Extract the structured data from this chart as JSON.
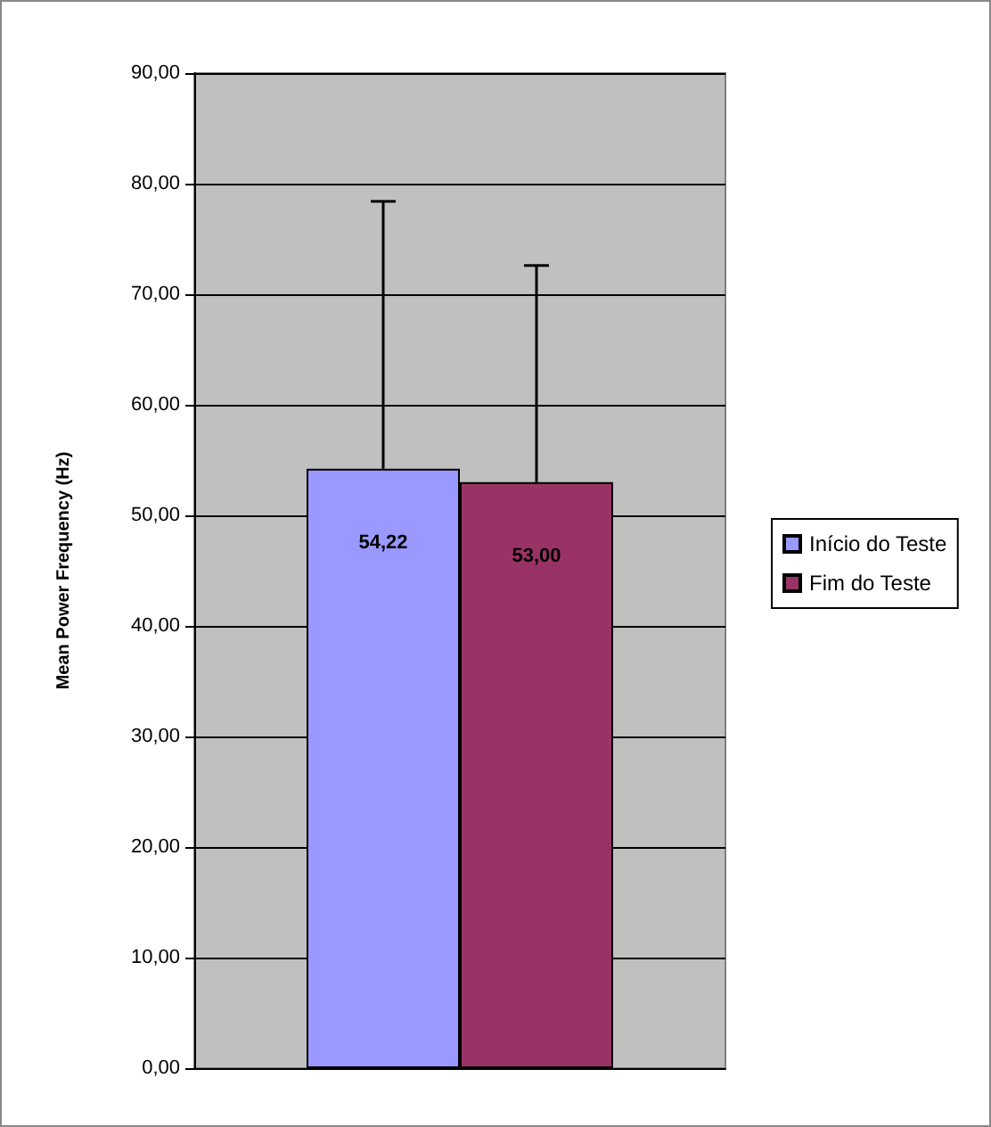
{
  "chart_data": {
    "type": "bar",
    "ylabel": "Mean Power Frequency (Hz)",
    "categories": [
      null
    ],
    "series": [
      {
        "name": "Início do Teste",
        "color": "#9999ff",
        "values": [
          54.22
        ],
        "errors": [
          [
            54.22,
            78.4
          ]
        ],
        "value_labels": [
          "54,22"
        ]
      },
      {
        "name": "Fim do Teste",
        "color": "#993366",
        "values": [
          53.0
        ],
        "errors": [
          [
            53.0,
            72.6
          ]
        ],
        "value_labels": [
          "53,00"
        ]
      }
    ],
    "ylim": [
      0,
      90
    ],
    "yticks": [
      {
        "value": 0,
        "label": "0,00"
      },
      {
        "value": 10,
        "label": "10,00"
      },
      {
        "value": 20,
        "label": "20,00"
      },
      {
        "value": 30,
        "label": "30,00"
      },
      {
        "value": 40,
        "label": "40,00"
      },
      {
        "value": 50,
        "label": "50,00"
      },
      {
        "value": 60,
        "label": "60,00"
      },
      {
        "value": 70,
        "label": "70,00"
      },
      {
        "value": 80,
        "label": "80,00"
      },
      {
        "value": 90,
        "label": "90,00"
      }
    ],
    "grid": "y",
    "legend": "right"
  }
}
